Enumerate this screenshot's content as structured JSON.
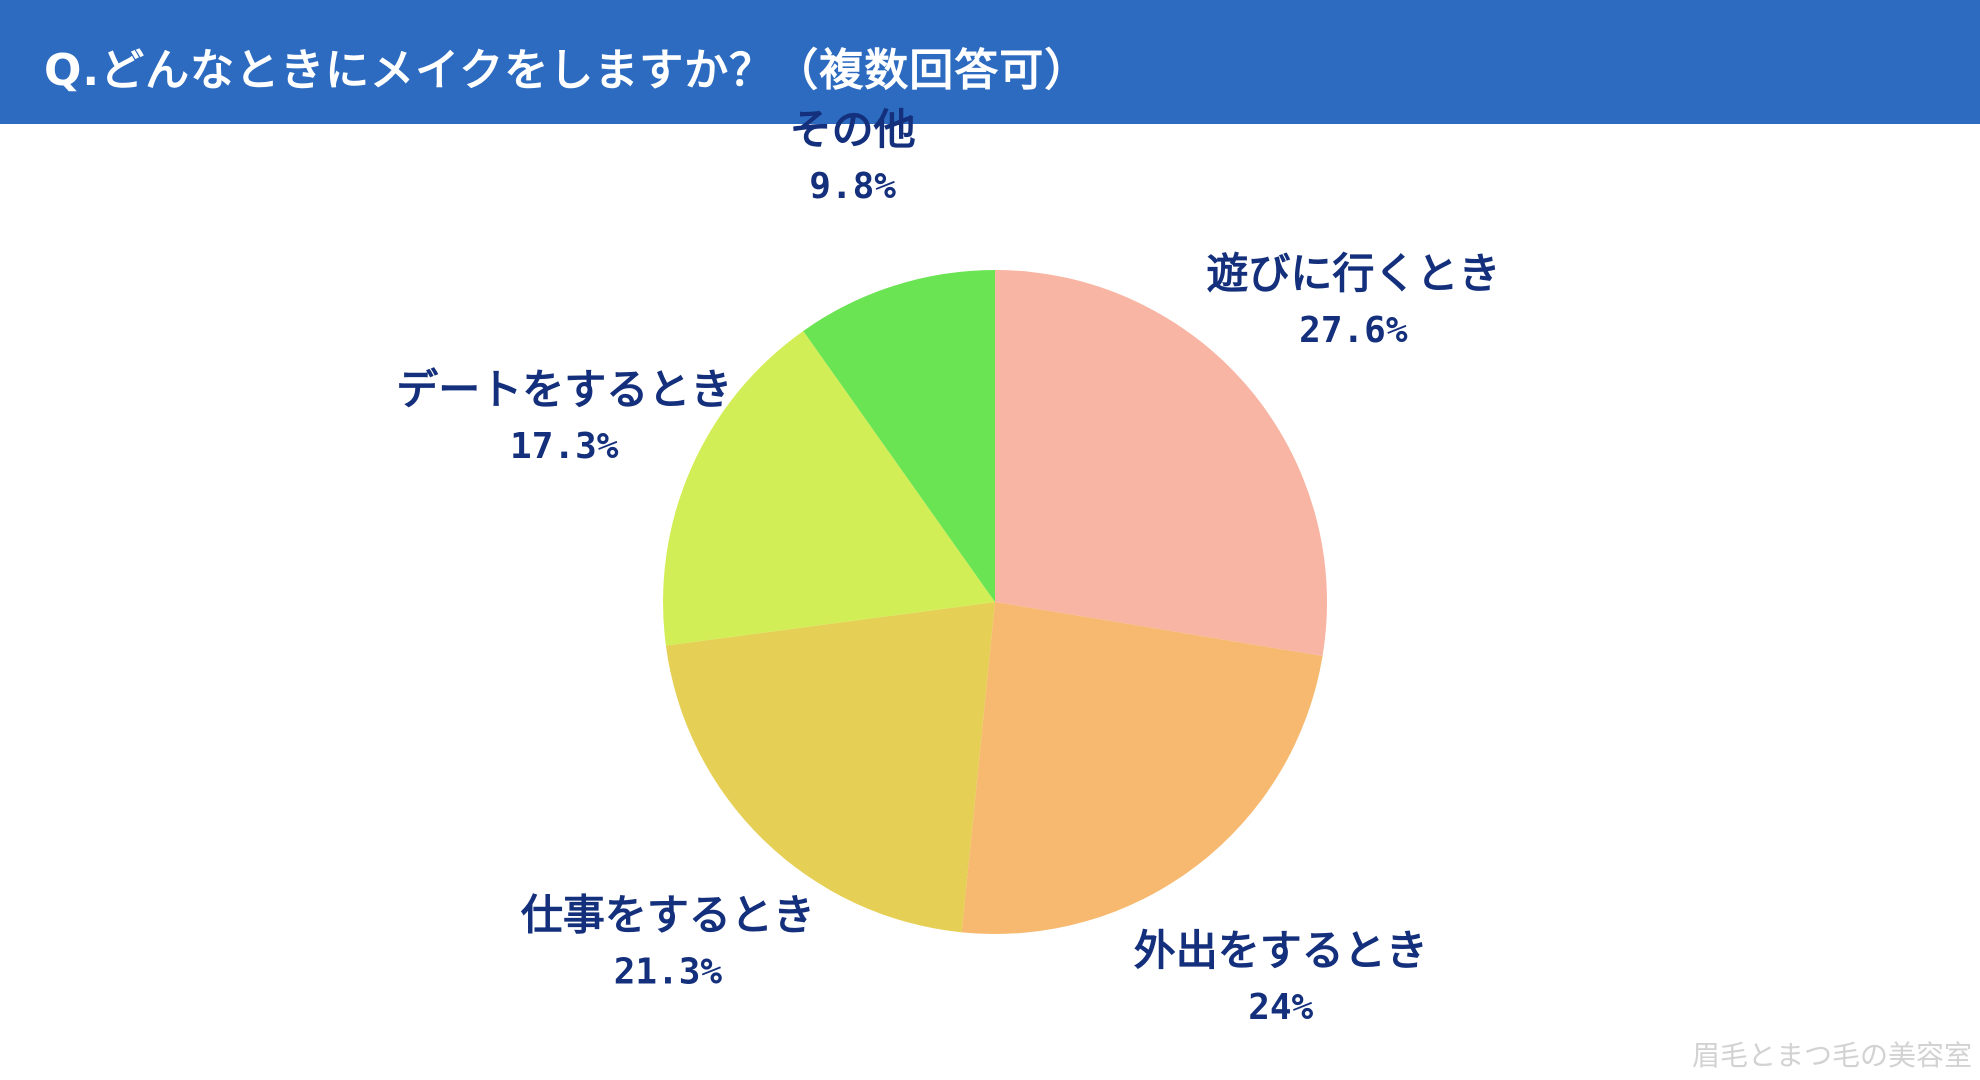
{
  "header": {
    "title": "Q.どんなときにメイクをしますか？（複数回答可）",
    "background": "#2c6bc0"
  },
  "chart_data": {
    "type": "pie",
    "title": "Q.どんなときにメイクをしますか？（複数回答可）",
    "start": "12 o'clock",
    "direction": "clockwise",
    "slices": [
      {
        "label": "遊びに行くとき",
        "value": 27.6,
        "display": "27.6%",
        "color": "#f8b5a3"
      },
      {
        "label": "外出をするとき",
        "value": 24,
        "display": "24%",
        "color": "#f6b96f"
      },
      {
        "label": "仕事をするとき",
        "value": 21.3,
        "display": "21.3%",
        "color": "#e6cf55"
      },
      {
        "label": "デートをするとき",
        "value": 17.3,
        "display": "17.3%",
        "color": "#d2ee56"
      },
      {
        "label": "その他",
        "value": 9.8,
        "display": "9.8%",
        "color": "#6be454"
      }
    ],
    "label_color": "#14307c"
  },
  "watermark": "眉毛とまつ毛の美容室"
}
